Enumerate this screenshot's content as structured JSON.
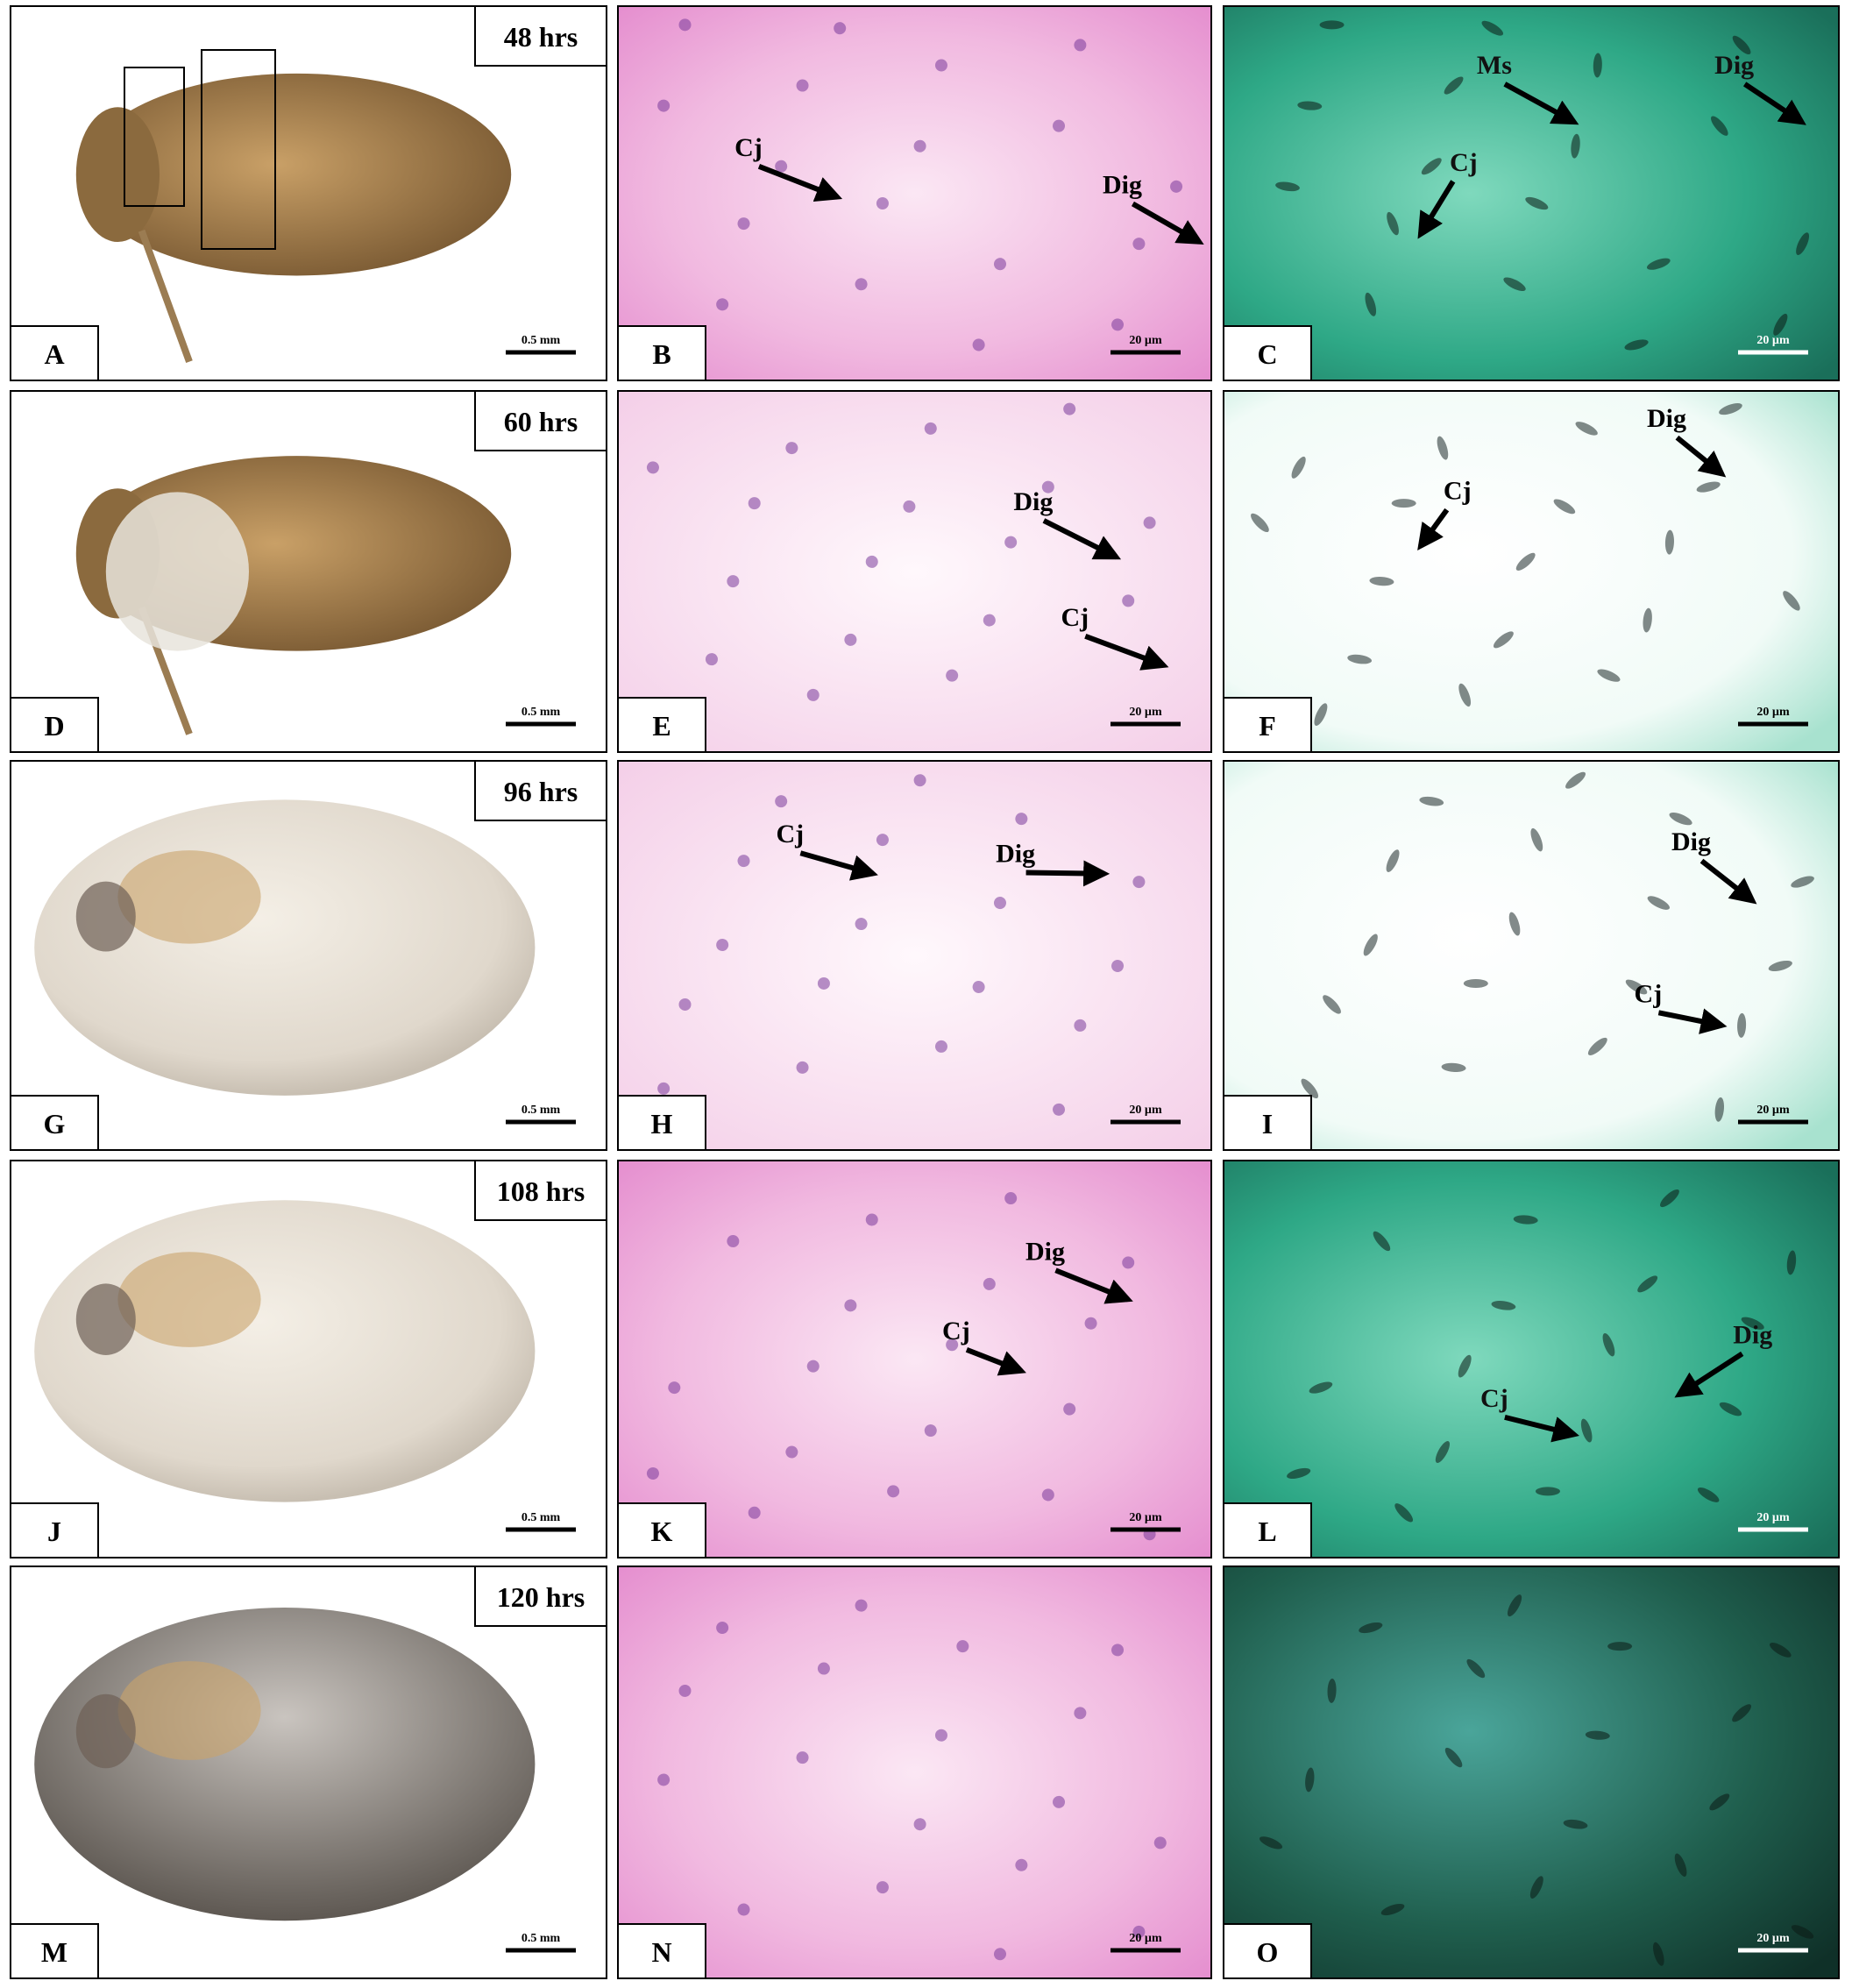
{
  "figure": {
    "rows": [
      {
        "time": "48 hrs",
        "panels": [
          {
            "letter": "A",
            "scale_bar": "0.5 mm"
          },
          {
            "letter": "B",
            "labels": [
              "Cj",
              "Dig"
            ],
            "scale_bar": "20 µm"
          },
          {
            "letter": "C",
            "labels": [
              "Ms",
              "Dig",
              "Cj"
            ],
            "scale_bar": "20 µm"
          }
        ]
      },
      {
        "time": "60 hrs",
        "panels": [
          {
            "letter": "D",
            "scale_bar": "0.5 mm"
          },
          {
            "letter": "E",
            "labels": [
              "Dig",
              "Cj"
            ],
            "scale_bar": "20 µm"
          },
          {
            "letter": "F",
            "labels": [
              "Cj",
              "Dig"
            ],
            "scale_bar": "20 µm"
          }
        ]
      },
      {
        "time": "96 hrs",
        "panels": [
          {
            "letter": "G",
            "scale_bar": "0.5 mm"
          },
          {
            "letter": "H",
            "labels": [
              "Cj",
              "Dig"
            ],
            "scale_bar": "20 µm"
          },
          {
            "letter": "I",
            "labels": [
              "Dig",
              "Cj"
            ],
            "scale_bar": "20 µm"
          }
        ]
      },
      {
        "time": "108 hrs",
        "panels": [
          {
            "letter": "J",
            "scale_bar": "0.5 mm"
          },
          {
            "letter": "K",
            "labels": [
              "Dig",
              "Cj"
            ],
            "scale_bar": "20 µm"
          },
          {
            "letter": "L",
            "labels": [
              "Dig",
              "Cj"
            ],
            "scale_bar": "20 µm"
          }
        ]
      },
      {
        "time": "120 hrs",
        "panels": [
          {
            "letter": "M",
            "scale_bar": "0.5 mm"
          },
          {
            "letter": "N",
            "scale_bar": "20 µm"
          },
          {
            "letter": "O",
            "scale_bar": "20 µm"
          }
        ]
      }
    ]
  }
}
